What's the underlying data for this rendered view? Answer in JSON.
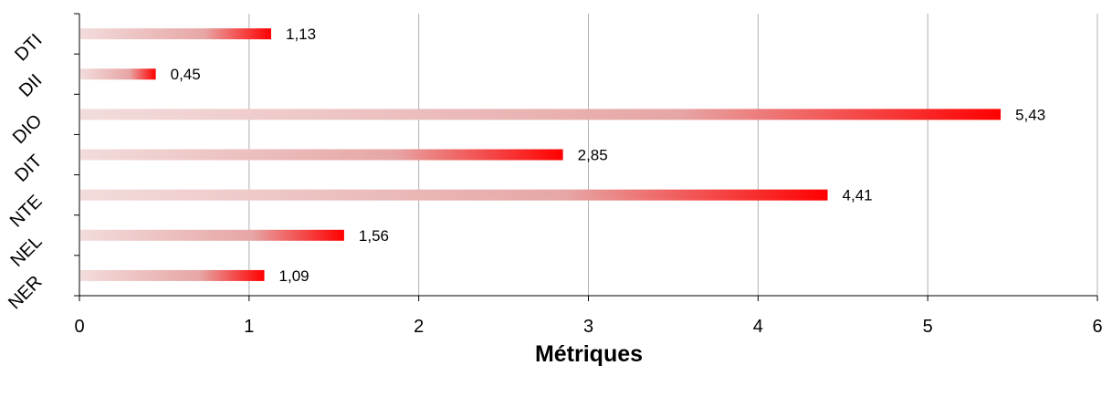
{
  "chart_data": {
    "type": "bar",
    "orientation": "horizontal",
    "categories": [
      "DTI",
      "DII",
      "DIO",
      "DIT",
      "NTE",
      "NEL",
      "NER"
    ],
    "values": [
      1.13,
      0.45,
      5.43,
      2.85,
      4.41,
      1.56,
      1.09
    ],
    "value_labels": [
      "1,13",
      "0,45",
      "5,43",
      "2,85",
      "4,41",
      "1,56",
      "1,09"
    ],
    "xlabel": "Métriques",
    "ylabel": "",
    "title": "",
    "xlim": [
      0,
      6
    ],
    "x_ticks": [
      "0",
      "1",
      "2",
      "3",
      "4",
      "5",
      "6"
    ],
    "grid": "vertical",
    "legend": "none",
    "colors": {
      "bar_start": "#f2dcdb",
      "bar_mid": "#e6a6a5",
      "bar_end": "#ff0000",
      "grid": "#b0b0b0",
      "axis": "#000000"
    }
  }
}
